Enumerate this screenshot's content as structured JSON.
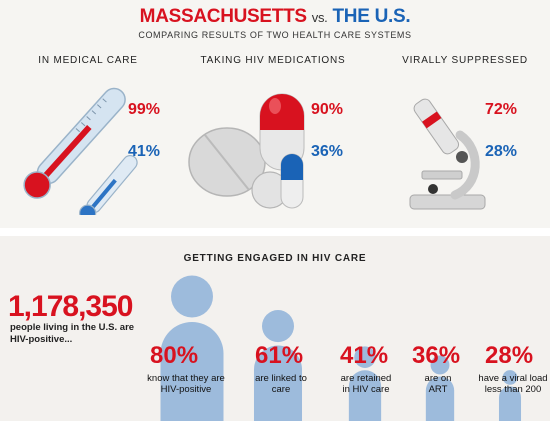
{
  "header": {
    "title_ma": "MASSACHUSETTS",
    "title_vs": "vs.",
    "title_us": "THE U.S.",
    "subtitle": "COMPARING RESULTS OF TWO HEALTH CARE SYSTEMS"
  },
  "comparison": [
    {
      "label": "IN MEDICAL CARE",
      "ma_value": "99%",
      "us_value": "41%",
      "icon": "thermometer-icon"
    },
    {
      "label": "TAKING HIV MEDICATIONS",
      "ma_value": "90%",
      "us_value": "36%",
      "icon": "pills-icon"
    },
    {
      "label": "VIRALLY SUPPRESSED",
      "ma_value": "72%",
      "us_value": "28%",
      "icon": "microscope-icon"
    }
  ],
  "engagement": {
    "title": "GETTING ENGAGED IN HIV CARE",
    "total_number": "1,178,350",
    "total_desc": "people living in the U.S. are HIV-positive...",
    "stats": [
      {
        "value": "80%",
        "desc": "know that they are HIV-positive",
        "fraction": 0.8
      },
      {
        "value": "61%",
        "desc": "are linked to care",
        "fraction": 0.61
      },
      {
        "value": "41%",
        "desc": "are retained in HIV care",
        "fraction": 0.41
      },
      {
        "value": "36%",
        "desc": "are on ART",
        "fraction": 0.36
      },
      {
        "value": "28%",
        "desc": "have a viral load less than 200",
        "fraction": 0.28
      }
    ]
  },
  "colors": {
    "massachusetts": "#d8121f",
    "us": "#1a63b6",
    "figure": "#9dbbdc"
  }
}
